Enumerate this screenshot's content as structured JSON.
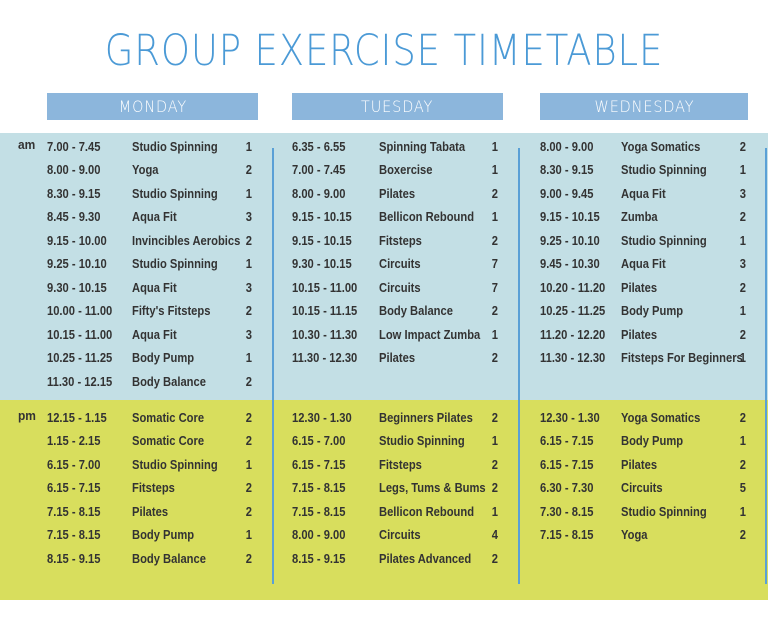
{
  "title": "GROUP EXERCISE TIMETABLE",
  "colors": {
    "title": "#4b9ad6",
    "day_header_bg": "#8cb6dc",
    "am_panel_bg": "#c3dfe5",
    "pm_panel_bg": "#d8de5d",
    "divider": "#5aa0d6",
    "text": "#333333"
  },
  "periods": {
    "am": "am",
    "pm": "pm"
  },
  "days": [
    {
      "name": "MONDAY",
      "am": [
        {
          "time": "7.00 - 7.45",
          "class": "Studio Spinning",
          "studio": "1"
        },
        {
          "time": "8.00 - 9.00",
          "class": "Yoga",
          "studio": "2"
        },
        {
          "time": "8.30 - 9.15",
          "class": "Studio Spinning",
          "studio": "1"
        },
        {
          "time": "8.45 - 9.30",
          "class": "Aqua Fit",
          "studio": "3"
        },
        {
          "time": "9.15 - 10.00",
          "class": "Invincibles Aerobics",
          "studio": "2"
        },
        {
          "time": "9.25 - 10.10",
          "class": "Studio Spinning",
          "studio": "1"
        },
        {
          "time": "9.30 - 10.15",
          "class": "Aqua Fit",
          "studio": "3"
        },
        {
          "time": "10.00 - 11.00",
          "class": "Fifty's Fitsteps",
          "studio": "2"
        },
        {
          "time": "10.15 - 11.00",
          "class": "Aqua Fit",
          "studio": "3"
        },
        {
          "time": "10.25 - 11.25",
          "class": "Body Pump",
          "studio": "1"
        },
        {
          "time": "11.30 - 12.15",
          "class": "Body Balance",
          "studio": "2"
        }
      ],
      "pm": [
        {
          "time": "12.15 - 1.15",
          "class": "Somatic Core",
          "studio": "2"
        },
        {
          "time": "1.15 - 2.15",
          "class": "Somatic Core",
          "studio": "2"
        },
        {
          "time": "6.15 - 7.00",
          "class": "Studio Spinning",
          "studio": "1"
        },
        {
          "time": "6.15 - 7.15",
          "class": "Fitsteps",
          "studio": "2"
        },
        {
          "time": "7.15 - 8.15",
          "class": "Pilates",
          "studio": "2"
        },
        {
          "time": "7.15 - 8.15",
          "class": "Body Pump",
          "studio": "1"
        },
        {
          "time": "8.15 - 9.15",
          "class": "Body Balance",
          "studio": "2"
        }
      ]
    },
    {
      "name": "TUESDAY",
      "am": [
        {
          "time": "6.35 - 6.55",
          "class": "Spinning Tabata",
          "studio": "1"
        },
        {
          "time": "7.00 - 7.45",
          "class": "Boxercise",
          "studio": "1"
        },
        {
          "time": "8.00 - 9.00",
          "class": "Pilates",
          "studio": "2"
        },
        {
          "time": "9.15 - 10.15",
          "class": "Bellicon Rebound",
          "studio": "1"
        },
        {
          "time": "9.15 - 10.15",
          "class": "Fitsteps",
          "studio": "2"
        },
        {
          "time": "9.30 - 10.15",
          "class": "Circuits",
          "studio": "7"
        },
        {
          "time": "10.15 - 11.00",
          "class": "Circuits",
          "studio": "7"
        },
        {
          "time": "10.15 - 11.15",
          "class": "Body Balance",
          "studio": "2"
        },
        {
          "time": "10.30 - 11.30",
          "class": "Low Impact Zumba",
          "studio": "1"
        },
        {
          "time": "11.30 - 12.30",
          "class": "Pilates",
          "studio": "2"
        }
      ],
      "pm": [
        {
          "time": "12.30 - 1.30",
          "class": "Beginners Pilates",
          "studio": "2"
        },
        {
          "time": "6.15 - 7.00",
          "class": "Studio Spinning",
          "studio": "1"
        },
        {
          "time": "6.15 - 7.15",
          "class": "Fitsteps",
          "studio": "2"
        },
        {
          "time": "7.15 - 8.15",
          "class": "Legs, Tums & Bums",
          "studio": "2"
        },
        {
          "time": "7.15 - 8.15",
          "class": "Bellicon Rebound",
          "studio": "1"
        },
        {
          "time": "8.00 - 9.00",
          "class": "Circuits",
          "studio": "4"
        },
        {
          "time": "8.15 - 9.15",
          "class": "Pilates Advanced",
          "studio": "2"
        }
      ]
    },
    {
      "name": "WEDNESDAY",
      "am": [
        {
          "time": "8.00 - 9.00",
          "class": "Yoga Somatics",
          "studio": "2"
        },
        {
          "time": "8.30 - 9.15",
          "class": "Studio Spinning",
          "studio": "1"
        },
        {
          "time": "9.00 - 9.45",
          "class": "Aqua Fit",
          "studio": "3"
        },
        {
          "time": "9.15 - 10.15",
          "class": "Zumba",
          "studio": "2"
        },
        {
          "time": "9.25 - 10.10",
          "class": "Studio Spinning",
          "studio": "1"
        },
        {
          "time": "9.45 - 10.30",
          "class": "Aqua Fit",
          "studio": "3"
        },
        {
          "time": "10.20 - 11.20",
          "class": "Pilates",
          "studio": "2"
        },
        {
          "time": "10.25 - 11.25",
          "class": "Body Pump",
          "studio": "1"
        },
        {
          "time": "11.20 - 12.20",
          "class": "Pilates",
          "studio": "2"
        },
        {
          "time": "11.30 - 12.30",
          "class": "Fitsteps For Beginners",
          "studio": "1"
        }
      ],
      "pm": [
        {
          "time": "12.30 - 1.30",
          "class": "Yoga Somatics",
          "studio": "2"
        },
        {
          "time": "6.15 - 7.15",
          "class": "Body Pump",
          "studio": "1"
        },
        {
          "time": "6.15 - 7.15",
          "class": "Pilates",
          "studio": "2"
        },
        {
          "time": "6.30 - 7.30",
          "class": "Circuits",
          "studio": "5"
        },
        {
          "time": "7.30 - 8.15",
          "class": "Studio Spinning",
          "studio": "1"
        },
        {
          "time": "7.15 - 8.15",
          "class": "Yoga",
          "studio": "2"
        }
      ]
    }
  ]
}
